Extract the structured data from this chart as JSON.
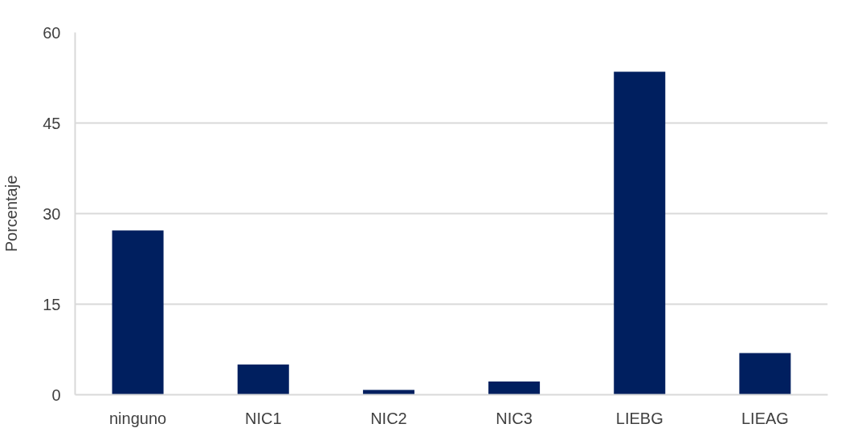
{
  "chart_data": {
    "type": "bar",
    "ylabel": "Porcentaje",
    "categories": [
      "ninguno",
      "NIC1",
      "NIC2",
      "NIC3",
      "LIEBG",
      "LIEAG"
    ],
    "values": [
      27.2,
      5.0,
      0.8,
      2.2,
      53.5,
      6.9
    ],
    "color": "#001f5f",
    "ylim": [
      0,
      60
    ],
    "yticks": [
      0,
      15,
      30,
      45,
      60
    ],
    "grid": "y"
  }
}
